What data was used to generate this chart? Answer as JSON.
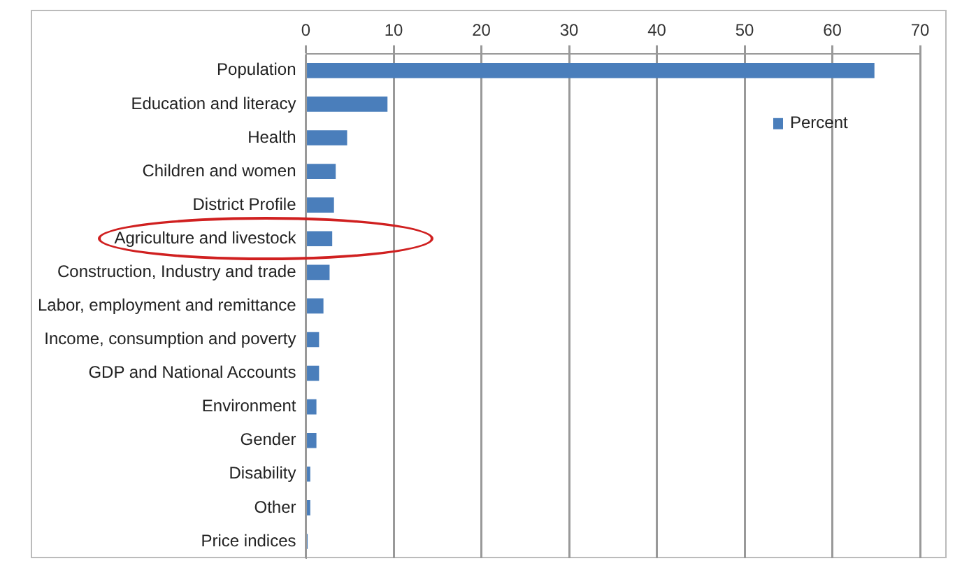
{
  "chart_data": {
    "type": "bar",
    "orientation": "horizontal",
    "categories": [
      "Population",
      "Education and literacy",
      "Health",
      "Children and women",
      "District Profile",
      "Agriculture and livestock",
      "Construction, Industry and trade",
      "Labor, employment and remittance",
      "Income, consumption and poverty",
      "GDP and National Accounts",
      "Environment",
      "Gender",
      "Disability",
      "Other",
      "Price indices"
    ],
    "series": [
      {
        "name": "Percent",
        "color": "#4a7ebb",
        "values": [
          64.8,
          9.3,
          4.7,
          3.4,
          3.2,
          3.0,
          2.7,
          2.0,
          1.5,
          1.5,
          1.2,
          1.2,
          0.5,
          0.5,
          0.2
        ]
      }
    ],
    "xlim": [
      0,
      70
    ],
    "xticks": [
      0,
      10,
      20,
      30,
      40,
      50,
      60,
      70
    ],
    "grid": "x",
    "legend": "top right"
  }
}
